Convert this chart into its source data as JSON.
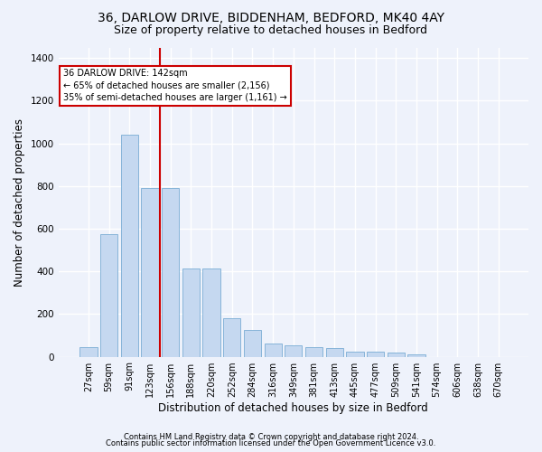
{
  "title1": "36, DARLOW DRIVE, BIDDENHAM, BEDFORD, MK40 4AY",
  "title2": "Size of property relative to detached houses in Bedford",
  "xlabel": "Distribution of detached houses by size in Bedford",
  "ylabel": "Number of detached properties",
  "categories": [
    "27sqm",
    "59sqm",
    "91sqm",
    "123sqm",
    "156sqm",
    "188sqm",
    "220sqm",
    "252sqm",
    "284sqm",
    "316sqm",
    "349sqm",
    "381sqm",
    "413sqm",
    "445sqm",
    "477sqm",
    "509sqm",
    "541sqm",
    "574sqm",
    "606sqm",
    "638sqm",
    "670sqm"
  ],
  "values": [
    45,
    575,
    1040,
    790,
    790,
    415,
    415,
    180,
    125,
    60,
    55,
    45,
    42,
    25,
    22,
    18,
    10,
    0,
    0,
    0,
    0
  ],
  "bar_color": "#c5d8f0",
  "bar_edge_color": "#7aadd4",
  "vline_x": 3.5,
  "annotation_title": "36 DARLOW DRIVE: 142sqm",
  "annotation_line1": "← 65% of detached houses are smaller (2,156)",
  "annotation_line2": "35% of semi-detached houses are larger (1,161) →",
  "ylim": [
    0,
    1450
  ],
  "yticks": [
    0,
    200,
    400,
    600,
    800,
    1000,
    1200,
    1400
  ],
  "footer1": "Contains HM Land Registry data © Crown copyright and database right 2024.",
  "footer2": "Contains public sector information licensed under the Open Government Licence v3.0.",
  "bg_color": "#eef2fb",
  "plot_bg_color": "#eef2fb",
  "grid_color": "#ffffff",
  "vline_color": "#cc0000",
  "ann_box_color": "#cc0000",
  "title_fontsize": 10,
  "subtitle_fontsize": 9,
  "tick_fontsize": 7,
  "ylabel_fontsize": 8.5,
  "xlabel_fontsize": 8.5,
  "footer_fontsize": 6.0
}
